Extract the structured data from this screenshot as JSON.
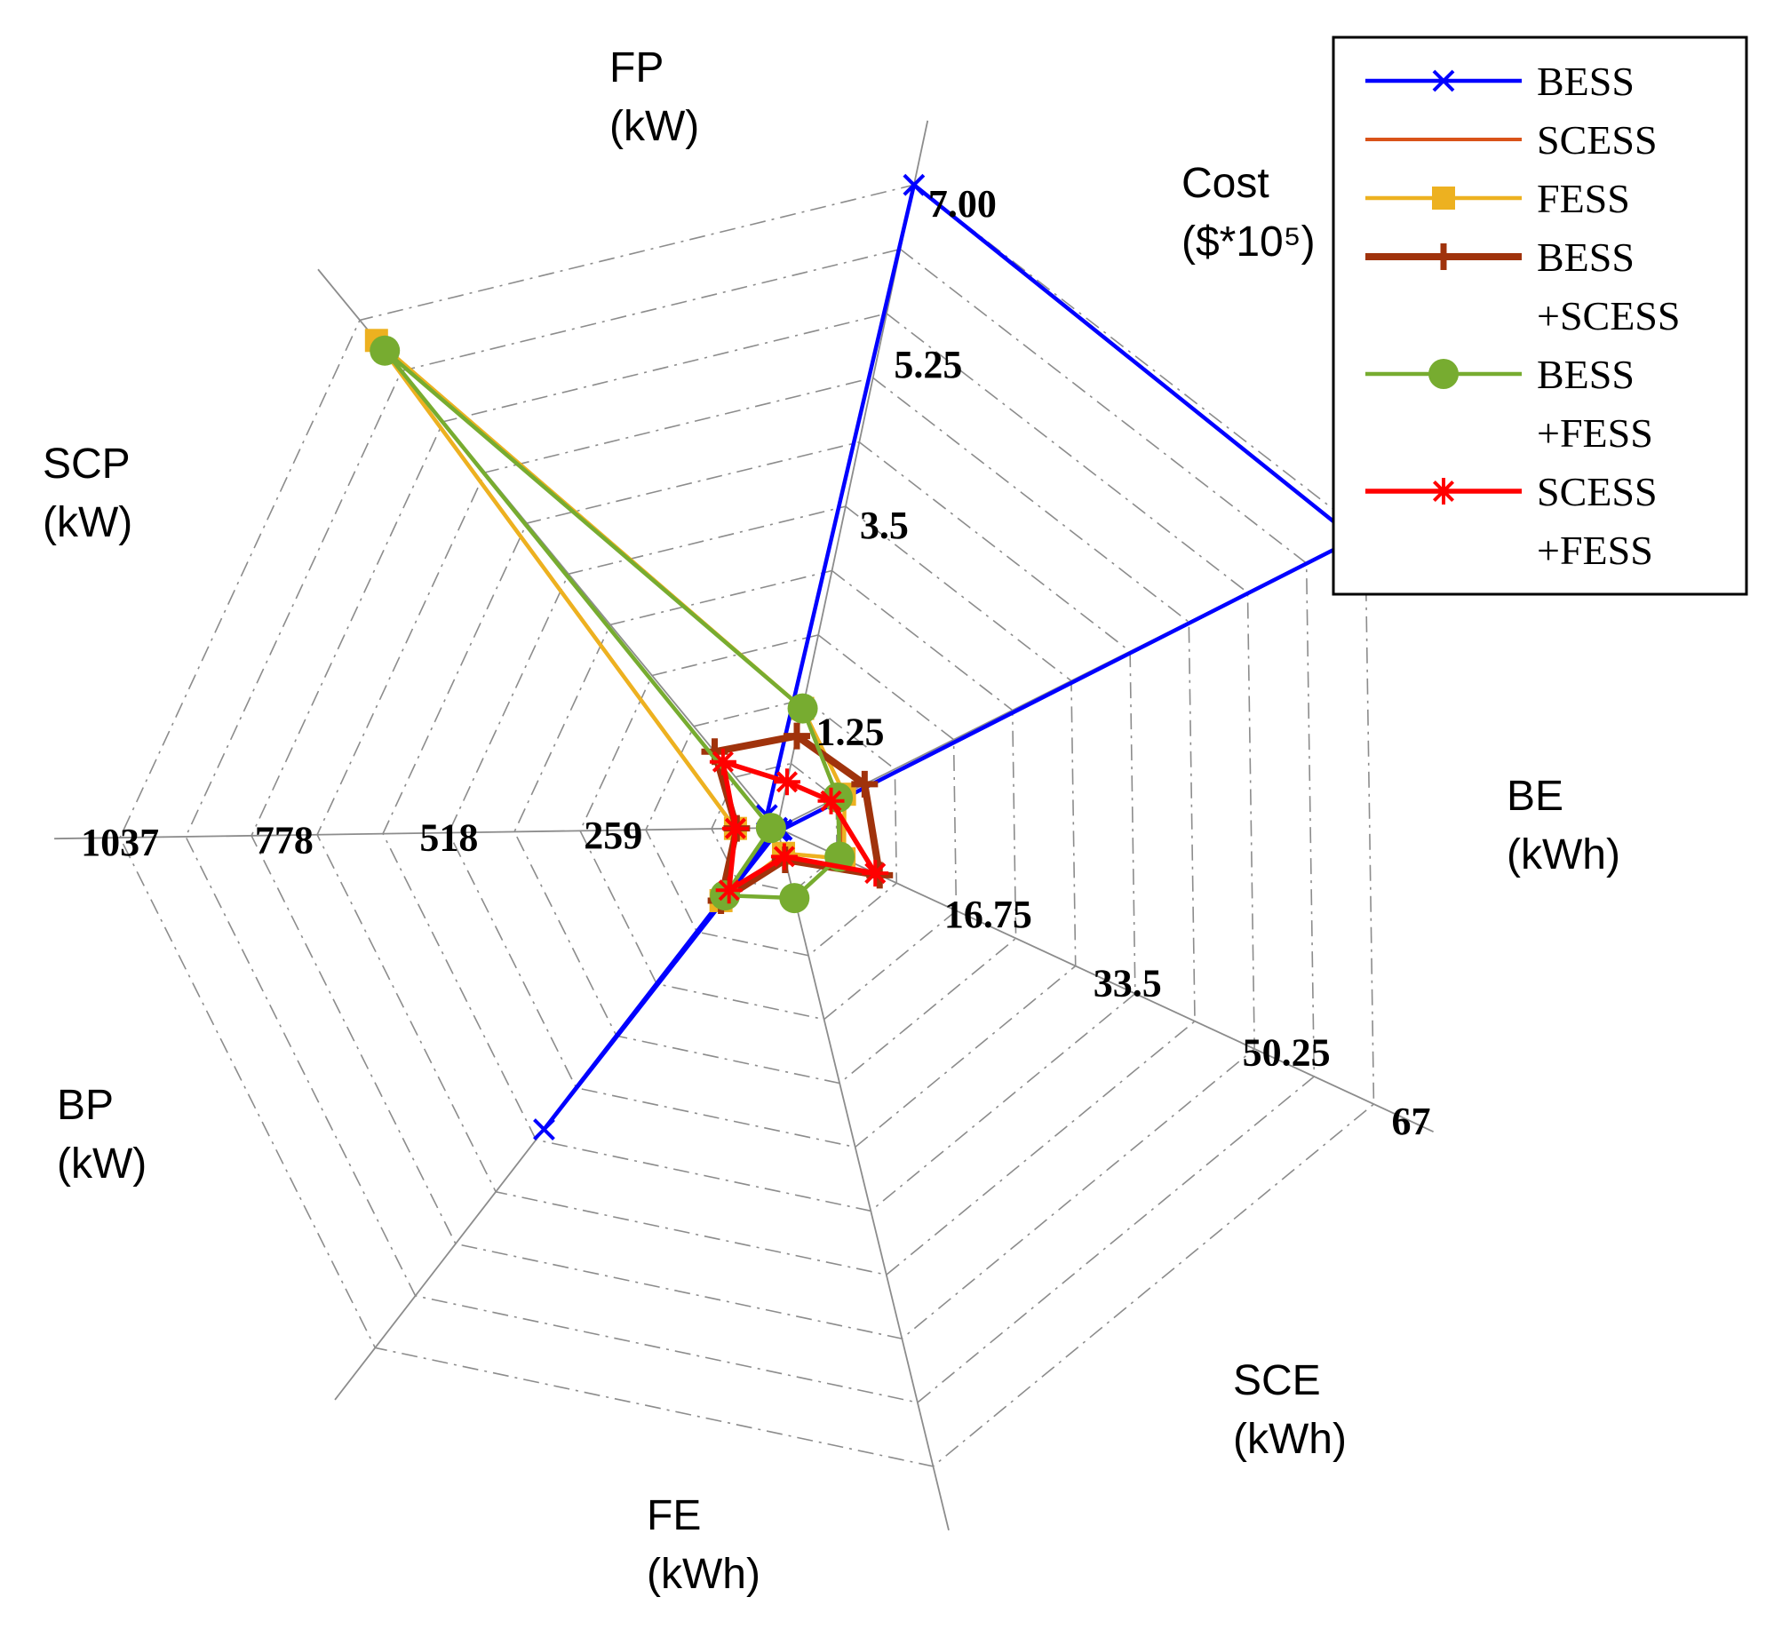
{
  "chart_data": {
    "type": "radar",
    "title": "",
    "axes": [
      {
        "key": "Cost",
        "title_lines": [
          "Cost",
          "($*10⁵)"
        ],
        "max": 7.0,
        "ticks": [
          "1.25",
          "3.5",
          "5.25",
          "7.00"
        ],
        "tick_values": [
          1.25,
          3.5,
          5.25,
          7.0
        ]
      },
      {
        "key": "BE",
        "title_lines": [
          "BE",
          "(kWh)"
        ],
        "max": 8.75,
        "ticks": [],
        "tick_values": []
      },
      {
        "key": "SCE",
        "title_lines": [
          "SCE",
          "(kWh)"
        ],
        "max": 67,
        "ticks": [
          "16.75",
          "33.5",
          "50.25",
          "67"
        ],
        "tick_values": [
          16.75,
          33.5,
          50.25,
          67
        ]
      },
      {
        "key": "FE",
        "title_lines": [
          "FE",
          "(kWh)"
        ],
        "max": 100,
        "ticks": [],
        "tick_values": []
      },
      {
        "key": "BP",
        "title_lines": [
          "BP",
          "(kW)"
        ],
        "max": 100,
        "ticks": [],
        "tick_values": []
      },
      {
        "key": "SCP",
        "title_lines": [
          "SCP",
          "(kW)"
        ],
        "max": 1037,
        "ticks": [
          "259",
          "518",
          "778",
          "1037"
        ],
        "tick_values": [
          259,
          518,
          778,
          1037
        ]
      },
      {
        "key": "FP",
        "title_lines": [
          "FP",
          "(kW)"
        ],
        "max": 100,
        "ticks": [],
        "tick_values": []
      }
    ],
    "rings": 10,
    "grid": true,
    "legend_position": "top-right",
    "series": [
      {
        "name": "BESS",
        "legend_lines": [
          "BESS"
        ],
        "color": "#0000ff",
        "marker": "x",
        "line_width": 4.5,
        "values": [
          7.0,
          8.6,
          0.5,
          0.5,
          58,
          0.5,
          2.5
        ]
      },
      {
        "name": "SCESS",
        "legend_lines": [
          "SCESS"
        ],
        "color": "#d95319",
        "marker": "none",
        "line_width": 4,
        "values": [
          1.3,
          0.9,
          7.5,
          4.0,
          14,
          66,
          96
        ]
      },
      {
        "name": "FESS",
        "legend_lines": [
          "FESS"
        ],
        "color": "#edb120",
        "marker": "square",
        "line_width": 4.5,
        "values": [
          1.3,
          1.0,
          7.5,
          4.0,
          14,
          66,
          96
        ]
      },
      {
        "name": "BESS+SCESS",
        "legend_lines": [
          "BESS",
          "+SCESS"
        ],
        "color": "#a0330c",
        "marker": "plus",
        "line_width": 8,
        "values": [
          1.0,
          1.3,
          11.5,
          5.0,
          14,
          64,
          15
        ]
      },
      {
        "name": "BESS+FESS",
        "legend_lines": [
          "BESS",
          "+FESS"
        ],
        "color": "#77ac30",
        "marker": "circle",
        "line_width": 4.5,
        "values": [
          1.3,
          0.9,
          7.0,
          11.0,
          13,
          10,
          94
        ]
      },
      {
        "name": "SCESS+FESS",
        "legend_lines": [
          "SCESS",
          "+FESS"
        ],
        "color": "#ff0000",
        "marker": "asterisk",
        "line_width": 5.5,
        "values": [
          0.5,
          0.8,
          11.0,
          4.5,
          12,
          66,
          13
        ]
      }
    ]
  }
}
